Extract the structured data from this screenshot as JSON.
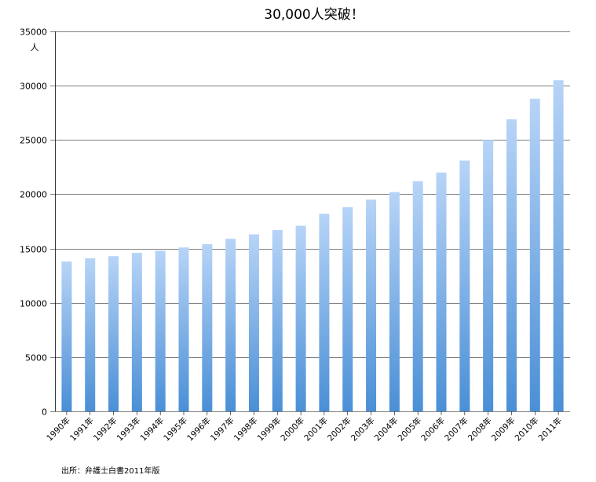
{
  "chart_data": {
    "type": "bar",
    "title": "30,000人突破！",
    "ylabel": "人",
    "xlabel": "",
    "ylim": [
      0,
      35000
    ],
    "yticks": [
      "0",
      "5000",
      "10000",
      "15000",
      "20000",
      "25000",
      "30000",
      "35000"
    ],
    "grid": true,
    "categories": [
      "1990年",
      "1991年",
      "1992年",
      "1993年",
      "1994年",
      "1995年",
      "1996年",
      "1997年",
      "1998年",
      "1999年",
      "2000年",
      "2001年",
      "2002年",
      "2003年",
      "2004年",
      "2005年",
      "2006年",
      "2007年",
      "2008年",
      "2009年",
      "2010年",
      "2011年"
    ],
    "values": [
      13800,
      14100,
      14300,
      14600,
      14800,
      15100,
      15400,
      15900,
      16300,
      16700,
      17100,
      18200,
      18800,
      19500,
      20200,
      21200,
      22000,
      23100,
      25000,
      26900,
      28800,
      30500
    ],
    "colors": {
      "bar_top": "#b7d4f7",
      "bar_bottom": "#4a8fd6",
      "grid": "#000000"
    }
  },
  "source": "出所：弁護士白書2011年版"
}
